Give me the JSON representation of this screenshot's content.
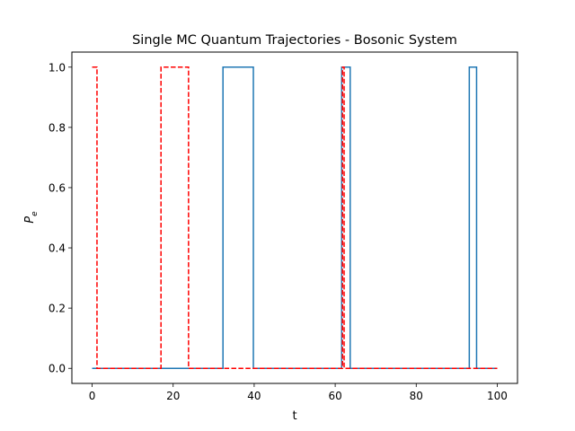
{
  "chart_data": {
    "type": "line",
    "title": "Single MC Quantum Trajectories - Bosonic System",
    "xlabel": "t",
    "ylabel_main": "P",
    "ylabel_sub": "e",
    "xlim": [
      -5,
      105
    ],
    "ylim": [
      -0.05,
      1.05
    ],
    "xticks": [
      0,
      20,
      40,
      60,
      80,
      100
    ],
    "xtick_labels": [
      "0",
      "20",
      "40",
      "60",
      "80",
      "100"
    ],
    "yticks": [
      0.0,
      0.2,
      0.4,
      0.6,
      0.8,
      1.0
    ],
    "ytick_labels": [
      "0.0",
      "0.2",
      "0.4",
      "0.6",
      "0.8",
      "1.0"
    ],
    "grid": false,
    "legend": false,
    "series": [
      {
        "style": "solid",
        "color": "#1f77b4",
        "steps": [
          [
            0,
            0
          ],
          [
            32.3,
            1
          ],
          [
            39.8,
            0
          ],
          [
            61.6,
            1
          ],
          [
            63.7,
            0
          ],
          [
            93.1,
            1
          ],
          [
            94.9,
            0
          ],
          [
            100,
            0
          ]
        ]
      },
      {
        "style": "dashed",
        "color": "#ff0000",
        "steps": [
          [
            0,
            1
          ],
          [
            1.2,
            0
          ],
          [
            17.0,
            1
          ],
          [
            23.8,
            0
          ],
          [
            61.8,
            1
          ],
          [
            62.2,
            0
          ],
          [
            100,
            0
          ]
        ]
      }
    ]
  }
}
